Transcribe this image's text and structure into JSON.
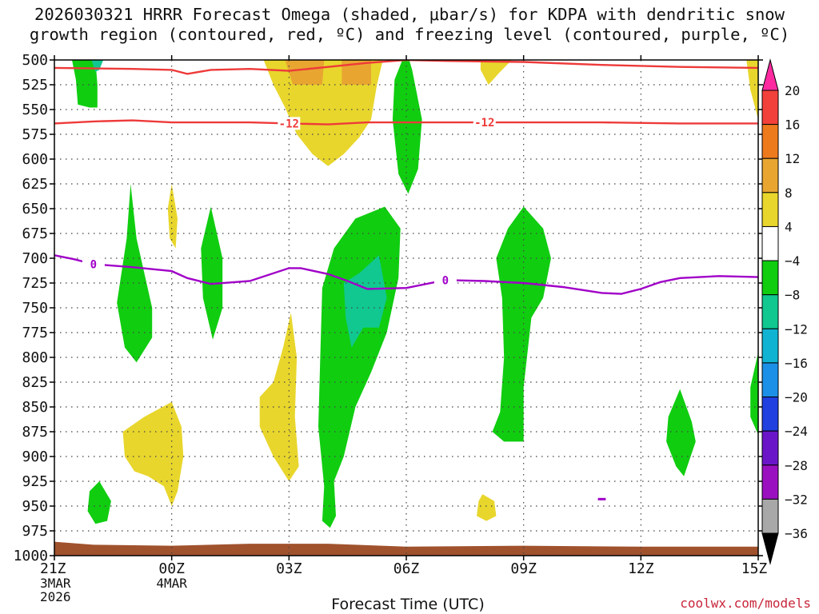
{
  "chart_data": {
    "type": "time-height contour",
    "title_line1": "2026030321 HRRR Forecast Omega (shaded, μbar/s) for KDPA with dendritic snow",
    "title_line2": "growth region (contoured, red, ºC) and freezing level (contoured, purple, ºC)",
    "xlabel": "Forecast Time (UTC)",
    "credit": "coolwx.com/models",
    "x_range_hours": [
      0,
      18
    ],
    "y_range_mb": [
      500,
      1000
    ],
    "y_ticks": [
      500,
      525,
      550,
      575,
      600,
      625,
      650,
      675,
      700,
      725,
      750,
      775,
      800,
      825,
      850,
      875,
      900,
      925,
      950,
      975,
      1000
    ],
    "x_ticks": [
      {
        "hour": 0,
        "label": "21Z",
        "sub1": "3MAR",
        "sub2": "2026"
      },
      {
        "hour": 3,
        "label": "00Z",
        "sub1": "4MAR",
        "sub2": ""
      },
      {
        "hour": 6,
        "label": "03Z",
        "sub1": "",
        "sub2": ""
      },
      {
        "hour": 9,
        "label": "06Z",
        "sub1": "",
        "sub2": ""
      },
      {
        "hour": 12,
        "label": "09Z",
        "sub1": "",
        "sub2": ""
      },
      {
        "hour": 15,
        "label": "12Z",
        "sub1": "",
        "sub2": ""
      },
      {
        "hour": 18,
        "label": "15Z",
        "sub1": "",
        "sub2": ""
      }
    ],
    "colorbar": {
      "levels": [
        {
          "label": "20",
          "color": "#ff1a6e"
        },
        {
          "label": "16",
          "color": "#f2413a"
        },
        {
          "label": "12",
          "color": "#ee7a1e"
        },
        {
          "label": "8",
          "color": "#e8a631"
        },
        {
          "label": "4",
          "color": "#e8d62c"
        },
        {
          "label": "−4",
          "color": "#ffffff"
        },
        {
          "label": "−8",
          "color": "#10cd10"
        },
        {
          "label": "−12",
          "color": "#10c890"
        },
        {
          "label": "−16",
          "color": "#10b4d2"
        },
        {
          "label": "−20",
          "color": "#1c90e6"
        },
        {
          "label": "−24",
          "color": "#2040e0"
        },
        {
          "label": "−28",
          "color": "#6a16c8"
        },
        {
          "label": "−32",
          "color": "#9a10c0"
        },
        {
          "label": "−36",
          "color": "#a8a8a8"
        }
      ],
      "top_triangle_color": "#ff2aa0",
      "bottom_triangle_color": "#000000"
    },
    "contours": {
      "dgz_lines": [
        {
          "label": "-12",
          "color": "#ee3a3a",
          "points": [
            [
              0,
              508
            ],
            [
              2,
              509
            ],
            [
              3,
              510
            ],
            [
              3.4,
              514
            ],
            [
              4,
              510
            ],
            [
              5,
              509
            ],
            [
              6,
              511
            ],
            [
              7,
              507
            ],
            [
              8,
              503
            ],
            [
              9,
              500
            ],
            [
              10,
              501
            ],
            [
              12,
              502
            ],
            [
              14,
              505
            ],
            [
              16,
              507
            ],
            [
              18,
              508
            ]
          ]
        },
        {
          "label": "-12",
          "color": "#ee3a3a",
          "label_positions": [
            6,
            11
          ],
          "points": [
            [
              0,
              564
            ],
            [
              1,
              562
            ],
            [
              2,
              561
            ],
            [
              3,
              563
            ],
            [
              4,
              563
            ],
            [
              5,
              563
            ],
            [
              6,
              564
            ],
            [
              7,
              565
            ],
            [
              8,
              563
            ],
            [
              9,
              563
            ],
            [
              10,
              563
            ],
            [
              12,
              563
            ],
            [
              14,
              563
            ],
            [
              16,
              564
            ],
            [
              18,
              564
            ]
          ]
        }
      ],
      "freezing_level": {
        "label": "0",
        "color": "#a000c8",
        "label_positions": [
          1,
          10
        ],
        "points": [
          [
            0,
            697
          ],
          [
            0.5,
            701
          ],
          [
            1,
            706
          ],
          [
            2,
            709
          ],
          [
            3,
            713
          ],
          [
            3.4,
            720
          ],
          [
            4,
            726
          ],
          [
            5,
            723
          ],
          [
            6,
            710
          ],
          [
            6.3,
            710
          ],
          [
            7,
            716
          ],
          [
            7.5,
            723
          ],
          [
            8,
            731
          ],
          [
            9,
            730
          ],
          [
            10,
            722
          ],
          [
            11,
            723
          ],
          [
            12,
            725
          ],
          [
            13,
            729
          ],
          [
            14,
            735
          ],
          [
            14.5,
            736
          ],
          [
            15,
            731
          ],
          [
            15.5,
            724
          ],
          [
            16,
            720
          ],
          [
            17,
            718
          ],
          [
            18,
            719
          ]
        ],
        "isolated_segment": {
          "hour": [
            13.9,
            14.1
          ],
          "mb": 943
        }
      }
    },
    "omega_regions": [
      {
        "name": "green-top-left",
        "level": "-4",
        "color": "#10cd10",
        "points": [
          [
            0.45,
            500
          ],
          [
            1.05,
            500
          ],
          [
            1.1,
            525
          ],
          [
            1.1,
            548
          ],
          [
            0.9,
            548
          ],
          [
            0.6,
            545
          ],
          [
            0.55,
            520
          ],
          [
            0.45,
            500
          ]
        ]
      },
      {
        "name": "teal-top-left",
        "level": "-8",
        "color": "#10c890",
        "points": [
          [
            0.95,
            500
          ],
          [
            1.25,
            500
          ],
          [
            1.15,
            510
          ],
          [
            1.05,
            512
          ],
          [
            0.95,
            500
          ]
        ]
      },
      {
        "name": "yellow-upper-center",
        "level": "4",
        "color": "#e8d62c",
        "points": [
          [
            5.35,
            500
          ],
          [
            8.4,
            500
          ],
          [
            8.25,
            525
          ],
          [
            8.1,
            560
          ],
          [
            7.8,
            578
          ],
          [
            7.4,
            595
          ],
          [
            7.0,
            607
          ],
          [
            6.6,
            595
          ],
          [
            6.2,
            575
          ],
          [
            5.9,
            548
          ],
          [
            5.6,
            525
          ],
          [
            5.35,
            500
          ]
        ]
      },
      {
        "name": "orange-center-left",
        "level": "8",
        "color": "#e8a631",
        "points": [
          [
            5.9,
            500
          ],
          [
            6.9,
            500
          ],
          [
            6.85,
            525
          ],
          [
            6.1,
            525
          ],
          [
            5.9,
            500
          ]
        ]
      },
      {
        "name": "orange-center-right",
        "level": "8",
        "color": "#e8a631",
        "points": [
          [
            7.35,
            500
          ],
          [
            8.1,
            500
          ],
          [
            8.1,
            525
          ],
          [
            7.35,
            525
          ],
          [
            7.35,
            500
          ]
        ]
      },
      {
        "name": "green-center-tall",
        "level": "-4",
        "color": "#10cd10",
        "points": [
          [
            9.0,
            490
          ],
          [
            9.15,
            510
          ],
          [
            9.4,
            560
          ],
          [
            9.3,
            610
          ],
          [
            9.05,
            635
          ],
          [
            8.8,
            615
          ],
          [
            8.65,
            560
          ],
          [
            8.7,
            520
          ],
          [
            9.0,
            490
          ]
        ]
      },
      {
        "name": "yellow-top-8z",
        "level": "4",
        "color": "#e8d62c",
        "points": [
          [
            10.9,
            500
          ],
          [
            11.7,
            500
          ],
          [
            11.4,
            512
          ],
          [
            11.1,
            525
          ],
          [
            10.9,
            510
          ],
          [
            10.9,
            500
          ]
        ]
      },
      {
        "name": "yellow-top-right",
        "level": "4",
        "color": "#e8d62c",
        "points": [
          [
            17.7,
            500
          ],
          [
            18,
            500
          ],
          [
            18,
            560
          ],
          [
            17.8,
            530
          ],
          [
            17.7,
            500
          ]
        ]
      },
      {
        "name": "yellow-small-00z",
        "level": "4",
        "color": "#e8d62c",
        "points": [
          [
            3.0,
            625
          ],
          [
            3.15,
            660
          ],
          [
            3.1,
            690
          ],
          [
            2.95,
            680
          ],
          [
            2.9,
            650
          ],
          [
            3.0,
            625
          ]
        ]
      },
      {
        "name": "green-22z",
        "level": "-4",
        "color": "#10cd10",
        "points": [
          [
            1.95,
            625
          ],
          [
            2.1,
            680
          ],
          [
            2.5,
            750
          ],
          [
            2.5,
            780
          ],
          [
            2.1,
            805
          ],
          [
            1.8,
            790
          ],
          [
            1.6,
            745
          ],
          [
            1.85,
            680
          ],
          [
            1.95,
            625
          ]
        ]
      },
      {
        "name": "green-01z",
        "level": "-4",
        "color": "#10cd10",
        "points": [
          [
            4.0,
            648
          ],
          [
            4.3,
            700
          ],
          [
            4.3,
            750
          ],
          [
            4.05,
            782
          ],
          [
            3.8,
            740
          ],
          [
            3.75,
            690
          ],
          [
            4.0,
            648
          ]
        ]
      },
      {
        "name": "green-04z",
        "level": "-4",
        "color": "#10cd10",
        "points": [
          [
            8.45,
            648
          ],
          [
            8.85,
            670
          ],
          [
            8.8,
            720
          ],
          [
            8.5,
            775
          ],
          [
            8.1,
            815
          ],
          [
            7.7,
            850
          ],
          [
            7.4,
            900
          ],
          [
            7.15,
            925
          ],
          [
            7.2,
            960
          ],
          [
            7.05,
            972
          ],
          [
            6.85,
            965
          ],
          [
            6.9,
            930
          ],
          [
            6.75,
            870
          ],
          [
            6.8,
            800
          ],
          [
            6.85,
            730
          ],
          [
            7.15,
            690
          ],
          [
            7.7,
            660
          ],
          [
            8.45,
            648
          ]
        ]
      },
      {
        "name": "teal-04z",
        "level": "-8",
        "color": "#10c890",
        "points": [
          [
            8.3,
            697
          ],
          [
            8.5,
            740
          ],
          [
            8.3,
            770
          ],
          [
            7.9,
            770
          ],
          [
            7.6,
            790
          ],
          [
            7.45,
            760
          ],
          [
            7.4,
            725
          ],
          [
            7.8,
            715
          ],
          [
            8.3,
            697
          ]
        ]
      },
      {
        "name": "yellow-03z-lower",
        "level": "4",
        "color": "#e8d62c",
        "points": [
          [
            6.05,
            755
          ],
          [
            6.2,
            800
          ],
          [
            6.15,
            860
          ],
          [
            6.25,
            910
          ],
          [
            6.0,
            925
          ],
          [
            5.6,
            900
          ],
          [
            5.25,
            870
          ],
          [
            5.25,
            840
          ],
          [
            5.6,
            825
          ],
          [
            5.85,
            790
          ],
          [
            6.05,
            755
          ]
        ]
      },
      {
        "name": "yellow-2230z-lower",
        "level": "4",
        "color": "#e8d62c",
        "points": [
          [
            1.75,
            875
          ],
          [
            2.3,
            860
          ],
          [
            3.0,
            845
          ],
          [
            3.25,
            870
          ],
          [
            3.3,
            900
          ],
          [
            3.15,
            935
          ],
          [
            3.0,
            950
          ],
          [
            2.8,
            930
          ],
          [
            2.4,
            920
          ],
          [
            2.05,
            915
          ],
          [
            1.8,
            900
          ],
          [
            1.75,
            875
          ]
        ]
      },
      {
        "name": "green-09z",
        "level": "-4",
        "color": "#10cd10",
        "points": [
          [
            12.0,
            648
          ],
          [
            12.5,
            670
          ],
          [
            12.7,
            700
          ],
          [
            12.5,
            740
          ],
          [
            12.2,
            760
          ],
          [
            12.0,
            830
          ],
          [
            12.0,
            885
          ],
          [
            11.5,
            885
          ],
          [
            11.2,
            875
          ],
          [
            11.4,
            855
          ],
          [
            11.5,
            800
          ],
          [
            11.45,
            740
          ],
          [
            11.3,
            700
          ],
          [
            11.6,
            670
          ],
          [
            12.0,
            648
          ]
        ]
      },
      {
        "name": "green-2130z-lower",
        "level": "-4",
        "color": "#10cd10",
        "points": [
          [
            1.15,
            925
          ],
          [
            1.45,
            945
          ],
          [
            1.35,
            965
          ],
          [
            1.05,
            968
          ],
          [
            0.85,
            955
          ],
          [
            0.9,
            935
          ],
          [
            1.15,
            925
          ]
        ]
      },
      {
        "name": "yellow-08z-small",
        "level": "4",
        "color": "#e8d62c",
        "points": [
          [
            10.95,
            938
          ],
          [
            11.25,
            945
          ],
          [
            11.3,
            960
          ],
          [
            11.05,
            965
          ],
          [
            10.8,
            960
          ],
          [
            10.85,
            945
          ],
          [
            10.95,
            938
          ]
        ]
      },
      {
        "name": "green-13z",
        "level": "-4",
        "color": "#10cd10",
        "points": [
          [
            16.0,
            832
          ],
          [
            16.3,
            865
          ],
          [
            16.4,
            885
          ],
          [
            16.1,
            920
          ],
          [
            15.9,
            910
          ],
          [
            15.65,
            885
          ],
          [
            15.7,
            860
          ],
          [
            16.0,
            832
          ]
        ]
      },
      {
        "name": "green-right-edge",
        "level": "-4",
        "color": "#10cd10",
        "points": [
          [
            18,
            795
          ],
          [
            18,
            878
          ],
          [
            17.8,
            860
          ],
          [
            17.8,
            830
          ],
          [
            18,
            795
          ]
        ]
      }
    ],
    "terrain": {
      "color": "#a0522d",
      "top_mb": [
        [
          0,
          986
        ],
        [
          1,
          989
        ],
        [
          3,
          990
        ],
        [
          5,
          988
        ],
        [
          7,
          988
        ],
        [
          9,
          991
        ],
        [
          12,
          990
        ],
        [
          15,
          991
        ],
        [
          18,
          991
        ]
      ]
    }
  }
}
